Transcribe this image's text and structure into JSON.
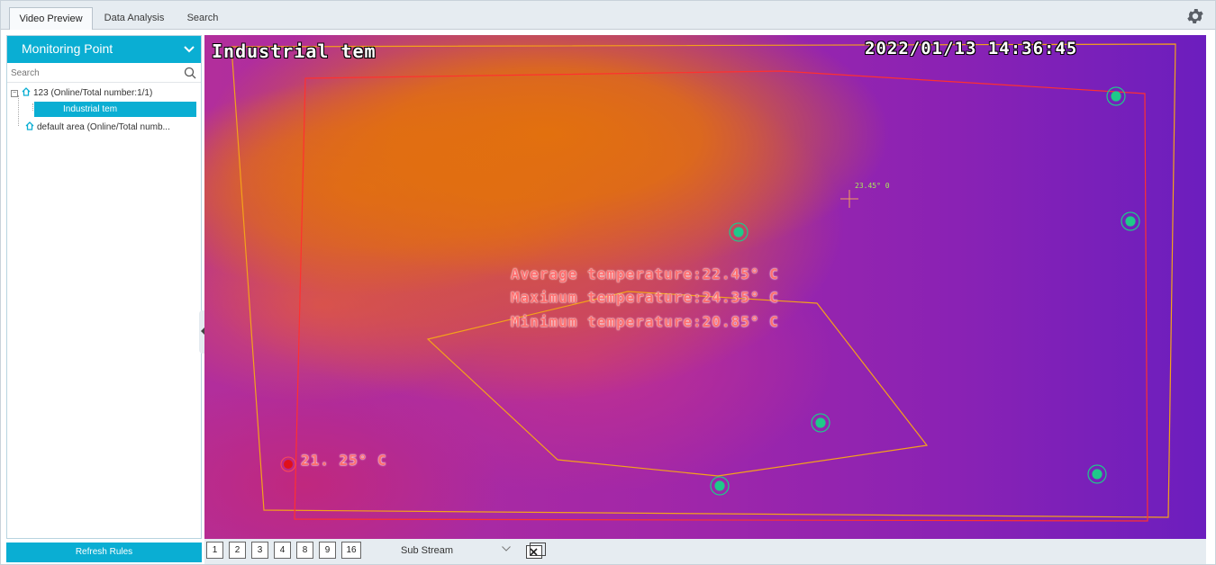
{
  "tabs": [
    {
      "label": "Video Preview",
      "active": true
    },
    {
      "label": "Data Analysis",
      "active": false
    },
    {
      "label": "Search",
      "active": false
    }
  ],
  "settings_icon": "gear-icon",
  "sidebar": {
    "header_title": "Monitoring Point",
    "search_placeholder": "Search",
    "tree": [
      {
        "label": "123 (Online/Total number:1/1)",
        "icon": "house-icon",
        "expanded": true
      },
      {
        "label": "Industrial tem",
        "selected": true
      },
      {
        "label": "default area (Online/Total numb...",
        "icon": "house-icon"
      }
    ],
    "refresh_label": "Refresh Rules"
  },
  "video": {
    "camera_title": "Industrial tem",
    "timestamp": "2022/01/13 14:36:45",
    "stats": {
      "average": "Average temperature:22.45° C",
      "maximum": "Maximum temperature:24.35° C",
      "minimum": "Minimum temperature:20.85° C"
    },
    "min_point_label": "21. 25° C",
    "cursor_label": "23.45° 0",
    "colors": {
      "region_orange": "#f4a21a",
      "region_red": "#ff3030",
      "marker": "#1fc98a",
      "min_marker": "#e0101a"
    }
  },
  "toolbar": {
    "layouts": [
      "1",
      "2",
      "3",
      "4",
      "8",
      "9",
      "16"
    ],
    "stream": "Sub Stream",
    "close_all_icon": "close-all-icon"
  }
}
